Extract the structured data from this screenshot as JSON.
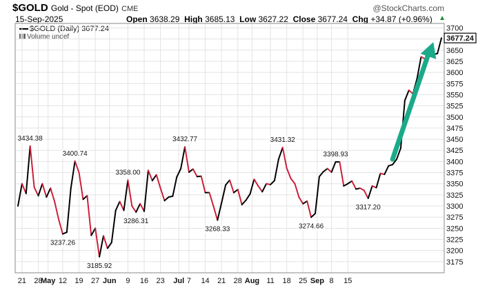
{
  "header": {
    "symbol": "$GOLD",
    "description": "Gold - Spot (EOD)",
    "exchange": "CME",
    "watermark": "@StockCharts.com",
    "date": "15-Sep-2025",
    "open_label": "Open",
    "open_value": "3638.29",
    "high_label": "High",
    "high_value": "3685.13",
    "low_label": "Low",
    "low_value": "3627.22",
    "close_label": "Close",
    "close_value": "3677.24",
    "chg_label": "Chg",
    "chg_value": "+34.87 (+0.96%)",
    "chg_arrow": "▲"
  },
  "legend": {
    "series_label": "$GOLD (Daily) 3677.24",
    "volume_label": "Volume undef"
  },
  "colors": {
    "up": "#000000",
    "down": "#cc1f3a",
    "grid": "#e3e3e3",
    "arrow": "#1aaa8a",
    "price_box": "#000000"
  },
  "chart_data": {
    "type": "line",
    "title": "$GOLD Gold - Spot (EOD) CME",
    "ylim": [
      3150,
      3710
    ],
    "y_ticks": [
      3175,
      3200,
      3225,
      3250,
      3275,
      3300,
      3325,
      3350,
      3375,
      3400,
      3425,
      3450,
      3475,
      3500,
      3525,
      3550,
      3575,
      3600,
      3625,
      3650,
      3675,
      3700
    ],
    "x_ticks": [
      {
        "i": 1,
        "label": "21",
        "bold": false
      },
      {
        "i": 5,
        "label": "28",
        "bold": false
      },
      {
        "i": 7.4,
        "label": "May",
        "bold": true
      },
      {
        "i": 11,
        "label": "12",
        "bold": false
      },
      {
        "i": 15,
        "label": "19",
        "bold": false
      },
      {
        "i": 19,
        "label": "27",
        "bold": false
      },
      {
        "i": 22.5,
        "label": "Jun",
        "bold": true
      },
      {
        "i": 27,
        "label": "9",
        "bold": false
      },
      {
        "i": 31,
        "label": "16",
        "bold": false
      },
      {
        "i": 35,
        "label": "23",
        "bold": false
      },
      {
        "i": 39.5,
        "label": "Jul",
        "bold": true
      },
      {
        "i": 42,
        "label": "7",
        "bold": false
      },
      {
        "i": 46,
        "label": "14",
        "bold": false
      },
      {
        "i": 50,
        "label": "21",
        "bold": false
      },
      {
        "i": 54,
        "label": "28",
        "bold": false
      },
      {
        "i": 57.5,
        "label": "Aug",
        "bold": true
      },
      {
        "i": 62,
        "label": "11",
        "bold": false
      },
      {
        "i": 66,
        "label": "18",
        "bold": false
      },
      {
        "i": 70,
        "label": "25",
        "bold": false
      },
      {
        "i": 73.5,
        "label": "Sep",
        "bold": true
      },
      {
        "i": 77,
        "label": "8",
        "bold": false
      },
      {
        "i": 81,
        "label": "15",
        "bold": false
      }
    ],
    "series": [
      {
        "values": [
          3300,
          3350,
          3328,
          3434.38,
          3342,
          3323,
          3350,
          3320,
          3340,
          3310,
          3270,
          3237.26,
          3241,
          3340,
          3400.74,
          3375,
          3315,
          3323,
          3234,
          3250,
          3185.92,
          3233,
          3205,
          3218,
          3290,
          3310,
          3290,
          3358.0,
          3300,
          3286.31,
          3305,
          3288,
          3380,
          3357,
          3370,
          3340,
          3312,
          3320,
          3322,
          3365,
          3384,
          3432.77,
          3376,
          3383,
          3366,
          3367,
          3330,
          3330,
          3300,
          3268.33,
          3307,
          3347,
          3358,
          3330,
          3337,
          3303,
          3313,
          3327,
          3360,
          3345,
          3332,
          3350,
          3348,
          3357,
          3405,
          3431.32,
          3385,
          3362,
          3350,
          3320,
          3305,
          3311,
          3274.66,
          3283,
          3366,
          3377,
          3384,
          3376,
          3398.93,
          3399,
          3345,
          3350,
          3356,
          3338,
          3340,
          3335,
          3317.2,
          3345,
          3341,
          3373,
          3371,
          3390,
          3393,
          3405,
          3430,
          3537,
          3560,
          3552,
          3586,
          3635,
          3630,
          3645,
          3640,
          3642.37,
          3677.24
        ]
      }
    ],
    "annotations": [
      {
        "i": 3,
        "label": "3434.38",
        "pos": "above"
      },
      {
        "i": 11,
        "label": "3237.26",
        "pos": "below"
      },
      {
        "i": 14,
        "label": "3400.74",
        "pos": "above"
      },
      {
        "i": 20,
        "label": "3185.92",
        "pos": "below"
      },
      {
        "i": 27,
        "label": "3358.00",
        "pos": "above"
      },
      {
        "i": 29,
        "label": "3286.31",
        "pos": "below"
      },
      {
        "i": 41,
        "label": "3432.77",
        "pos": "above"
      },
      {
        "i": 49,
        "label": "3268.33",
        "pos": "below"
      },
      {
        "i": 65,
        "label": "3431.32",
        "pos": "above"
      },
      {
        "i": 72,
        "label": "3274.66",
        "pos": "below"
      },
      {
        "i": 78,
        "label": "3398.93",
        "pos": "above"
      },
      {
        "i": 86,
        "label": "3317.20",
        "pos": "below"
      }
    ],
    "current_price_label": "3677.24",
    "grid": true,
    "legend_position": "top-left"
  }
}
